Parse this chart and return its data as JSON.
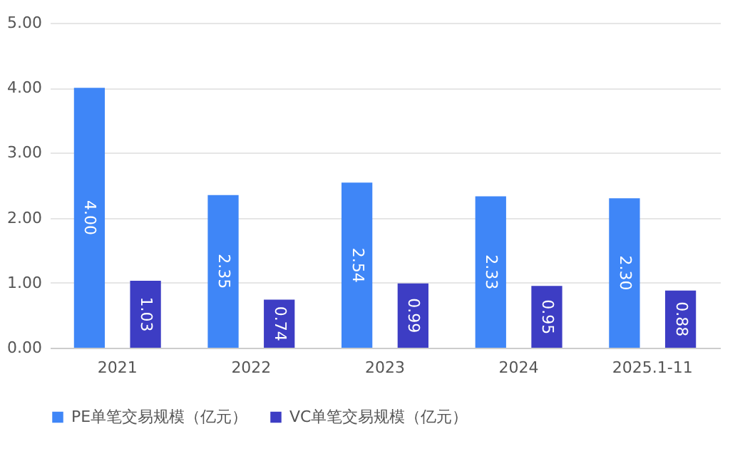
{
  "chart_data": {
    "type": "bar",
    "categories": [
      "2021",
      "2022",
      "2023",
      "2024",
      "2025.1-11"
    ],
    "series": [
      {
        "name": "PE单笔交易规模（亿元）",
        "color": "#3f86f7",
        "values": [
          4.0,
          2.35,
          2.54,
          2.33,
          2.3
        ],
        "value_labels": [
          "4.00",
          "2.35",
          "2.54",
          "2.33",
          "2.30"
        ]
      },
      {
        "name": "VC单笔交易规模（亿元）",
        "color": "#3d3dc4",
        "values": [
          1.03,
          0.74,
          0.99,
          0.95,
          0.88
        ],
        "value_labels": [
          "1.03",
          "0.74",
          "0.99",
          "0.95",
          "0.88"
        ]
      }
    ],
    "ylim": [
      0,
      5
    ],
    "yticks": [
      {
        "value": 0,
        "label": "0.00"
      },
      {
        "value": 1,
        "label": "1.00"
      },
      {
        "value": 2,
        "label": "2.00"
      },
      {
        "value": 3,
        "label": "3.00"
      },
      {
        "value": 4,
        "label": "4.00"
      },
      {
        "value": 5,
        "label": "5.00"
      }
    ],
    "grid": "y",
    "legend": "bottom"
  }
}
